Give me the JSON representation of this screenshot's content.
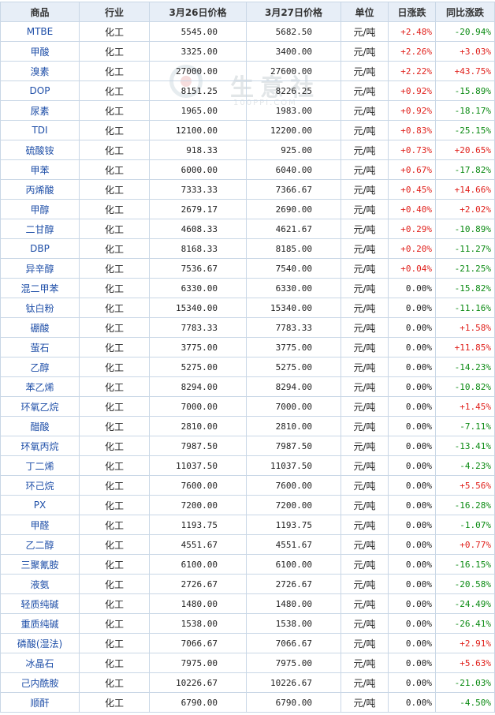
{
  "watermark": {
    "brand": "生意社",
    "site": "100PPI.COM"
  },
  "headers": {
    "name": "商品",
    "industry": "行业",
    "price_prev": "3月26日价格",
    "price_cur": "3月27日价格",
    "unit": "单位",
    "daily_change": "日涨跌",
    "yoy_change": "同比涨跌"
  },
  "rows": [
    {
      "name": "MTBE",
      "industry": "化工",
      "p1": "5545.00",
      "p2": "5682.50",
      "unit": "元/吨",
      "chg": "+2.48%",
      "yoy": "-20.94%"
    },
    {
      "name": "甲酸",
      "industry": "化工",
      "p1": "3325.00",
      "p2": "3400.00",
      "unit": "元/吨",
      "chg": "+2.26%",
      "yoy": "+3.03%"
    },
    {
      "name": "溴素",
      "industry": "化工",
      "p1": "27000.00",
      "p2": "27600.00",
      "unit": "元/吨",
      "chg": "+2.22%",
      "yoy": "+43.75%"
    },
    {
      "name": "DOP",
      "industry": "化工",
      "p1": "8151.25",
      "p2": "8226.25",
      "unit": "元/吨",
      "chg": "+0.92%",
      "yoy": "-15.89%"
    },
    {
      "name": "尿素",
      "industry": "化工",
      "p1": "1965.00",
      "p2": "1983.00",
      "unit": "元/吨",
      "chg": "+0.92%",
      "yoy": "-18.17%"
    },
    {
      "name": "TDI",
      "industry": "化工",
      "p1": "12100.00",
      "p2": "12200.00",
      "unit": "元/吨",
      "chg": "+0.83%",
      "yoy": "-25.15%"
    },
    {
      "name": "硫酸铵",
      "industry": "化工",
      "p1": "918.33",
      "p2": "925.00",
      "unit": "元/吨",
      "chg": "+0.73%",
      "yoy": "+20.65%"
    },
    {
      "name": "甲苯",
      "industry": "化工",
      "p1": "6000.00",
      "p2": "6040.00",
      "unit": "元/吨",
      "chg": "+0.67%",
      "yoy": "-17.82%"
    },
    {
      "name": "丙烯酸",
      "industry": "化工",
      "p1": "7333.33",
      "p2": "7366.67",
      "unit": "元/吨",
      "chg": "+0.45%",
      "yoy": "+14.66%"
    },
    {
      "name": "甲醇",
      "industry": "化工",
      "p1": "2679.17",
      "p2": "2690.00",
      "unit": "元/吨",
      "chg": "+0.40%",
      "yoy": "+2.02%"
    },
    {
      "name": "二甘醇",
      "industry": "化工",
      "p1": "4608.33",
      "p2": "4621.67",
      "unit": "元/吨",
      "chg": "+0.29%",
      "yoy": "-10.89%"
    },
    {
      "name": "DBP",
      "industry": "化工",
      "p1": "8168.33",
      "p2": "8185.00",
      "unit": "元/吨",
      "chg": "+0.20%",
      "yoy": "-11.27%"
    },
    {
      "name": "异辛醇",
      "industry": "化工",
      "p1": "7536.67",
      "p2": "7540.00",
      "unit": "元/吨",
      "chg": "+0.04%",
      "yoy": "-21.25%"
    },
    {
      "name": "混二甲苯",
      "industry": "化工",
      "p1": "6330.00",
      "p2": "6330.00",
      "unit": "元/吨",
      "chg": "0.00%",
      "yoy": "-15.82%"
    },
    {
      "name": "钛白粉",
      "industry": "化工",
      "p1": "15340.00",
      "p2": "15340.00",
      "unit": "元/吨",
      "chg": "0.00%",
      "yoy": "-11.16%"
    },
    {
      "name": "硼酸",
      "industry": "化工",
      "p1": "7783.33",
      "p2": "7783.33",
      "unit": "元/吨",
      "chg": "0.00%",
      "yoy": "+1.58%"
    },
    {
      "name": "萤石",
      "industry": "化工",
      "p1": "3775.00",
      "p2": "3775.00",
      "unit": "元/吨",
      "chg": "0.00%",
      "yoy": "+11.85%"
    },
    {
      "name": "乙醇",
      "industry": "化工",
      "p1": "5275.00",
      "p2": "5275.00",
      "unit": "元/吨",
      "chg": "0.00%",
      "yoy": "-14.23%"
    },
    {
      "name": "苯乙烯",
      "industry": "化工",
      "p1": "8294.00",
      "p2": "8294.00",
      "unit": "元/吨",
      "chg": "0.00%",
      "yoy": "-10.82%"
    },
    {
      "name": "环氧乙烷",
      "industry": "化工",
      "p1": "7000.00",
      "p2": "7000.00",
      "unit": "元/吨",
      "chg": "0.00%",
      "yoy": "+1.45%"
    },
    {
      "name": "醋酸",
      "industry": "化工",
      "p1": "2810.00",
      "p2": "2810.00",
      "unit": "元/吨",
      "chg": "0.00%",
      "yoy": "-7.11%"
    },
    {
      "name": "环氧丙烷",
      "industry": "化工",
      "p1": "7987.50",
      "p2": "7987.50",
      "unit": "元/吨",
      "chg": "0.00%",
      "yoy": "-13.41%"
    },
    {
      "name": "丁二烯",
      "industry": "化工",
      "p1": "11037.50",
      "p2": "11037.50",
      "unit": "元/吨",
      "chg": "0.00%",
      "yoy": "-4.23%"
    },
    {
      "name": "环己烷",
      "industry": "化工",
      "p1": "7600.00",
      "p2": "7600.00",
      "unit": "元/吨",
      "chg": "0.00%",
      "yoy": "+5.56%"
    },
    {
      "name": "PX",
      "industry": "化工",
      "p1": "7200.00",
      "p2": "7200.00",
      "unit": "元/吨",
      "chg": "0.00%",
      "yoy": "-16.28%"
    },
    {
      "name": "甲醛",
      "industry": "化工",
      "p1": "1193.75",
      "p2": "1193.75",
      "unit": "元/吨",
      "chg": "0.00%",
      "yoy": "-1.07%"
    },
    {
      "name": "乙二醇",
      "industry": "化工",
      "p1": "4551.67",
      "p2": "4551.67",
      "unit": "元/吨",
      "chg": "0.00%",
      "yoy": "+0.77%"
    },
    {
      "name": "三聚氰胺",
      "industry": "化工",
      "p1": "6100.00",
      "p2": "6100.00",
      "unit": "元/吨",
      "chg": "0.00%",
      "yoy": "-16.15%"
    },
    {
      "name": "液氨",
      "industry": "化工",
      "p1": "2726.67",
      "p2": "2726.67",
      "unit": "元/吨",
      "chg": "0.00%",
      "yoy": "-20.58%"
    },
    {
      "name": "轻质纯碱",
      "industry": "化工",
      "p1": "1480.00",
      "p2": "1480.00",
      "unit": "元/吨",
      "chg": "0.00%",
      "yoy": "-24.49%"
    },
    {
      "name": "重质纯碱",
      "industry": "化工",
      "p1": "1538.00",
      "p2": "1538.00",
      "unit": "元/吨",
      "chg": "0.00%",
      "yoy": "-26.41%"
    },
    {
      "name": "磷酸(湿法)",
      "industry": "化工",
      "p1": "7066.67",
      "p2": "7066.67",
      "unit": "元/吨",
      "chg": "0.00%",
      "yoy": "+2.91%"
    },
    {
      "name": "冰晶石",
      "industry": "化工",
      "p1": "7975.00",
      "p2": "7975.00",
      "unit": "元/吨",
      "chg": "0.00%",
      "yoy": "+5.63%"
    },
    {
      "name": "己内酰胺",
      "industry": "化工",
      "p1": "10226.67",
      "p2": "10226.67",
      "unit": "元/吨",
      "chg": "0.00%",
      "yoy": "-21.03%"
    },
    {
      "name": "顺酐",
      "industry": "化工",
      "p1": "6790.00",
      "p2": "6790.00",
      "unit": "元/吨",
      "chg": "0.00%",
      "yoy": "-4.50%"
    }
  ]
}
